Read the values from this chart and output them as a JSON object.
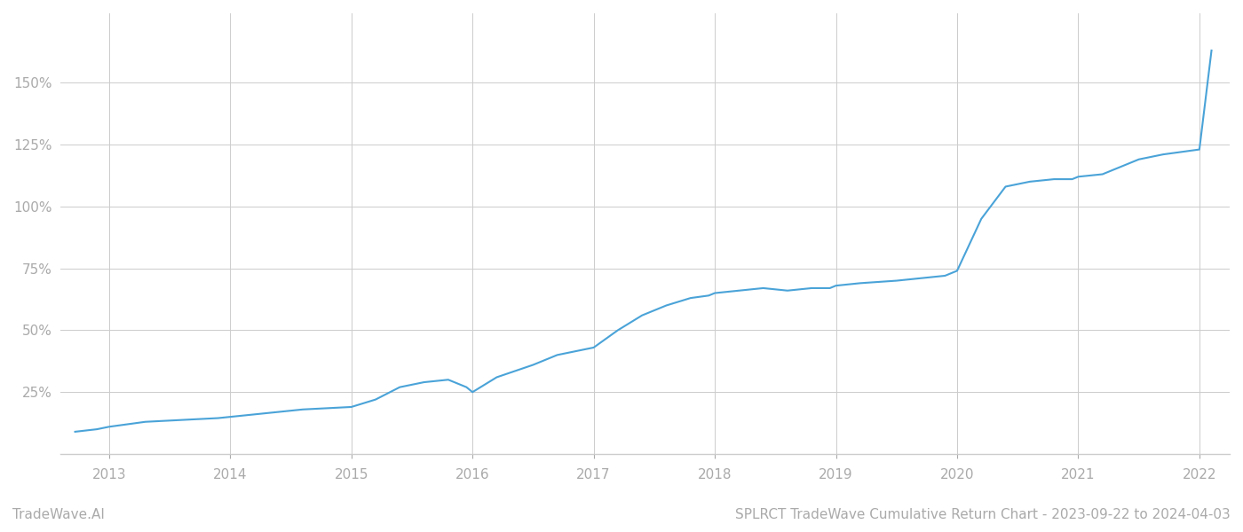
{
  "title": "SPLRCT TradeWave Cumulative Return Chart - 2023-09-22 to 2024-04-03",
  "watermark": "TradeWave.AI",
  "line_color": "#4aa3d8",
  "background_color": "#ffffff",
  "grid_color": "#cccccc",
  "x_years": [
    2013,
    2014,
    2015,
    2016,
    2017,
    2018,
    2019,
    2020,
    2021,
    2022
  ],
  "x_data": [
    2012.72,
    2012.9,
    2013.0,
    2013.15,
    2013.3,
    2013.5,
    2013.7,
    2013.9,
    2014.0,
    2014.2,
    2014.4,
    2014.6,
    2014.8,
    2015.0,
    2015.2,
    2015.4,
    2015.6,
    2015.8,
    2015.95,
    2016.0,
    2016.2,
    2016.5,
    2016.7,
    2016.9,
    2017.0,
    2017.2,
    2017.4,
    2017.6,
    2017.8,
    2017.95,
    2018.0,
    2018.2,
    2018.4,
    2018.6,
    2018.8,
    2018.95,
    2019.0,
    2019.2,
    2019.5,
    2019.7,
    2019.9,
    2020.0,
    2020.2,
    2020.4,
    2020.6,
    2020.8,
    2020.95,
    2021.0,
    2021.2,
    2021.5,
    2021.7,
    2021.85,
    2022.0,
    2022.1
  ],
  "y_data": [
    9,
    10,
    11,
    12,
    13,
    13.5,
    14,
    14.5,
    15,
    16,
    17,
    18,
    18.5,
    19,
    22,
    27,
    29,
    30,
    27,
    25,
    31,
    36,
    40,
    42,
    43,
    50,
    56,
    60,
    63,
    64,
    65,
    66,
    67,
    66,
    67,
    67,
    68,
    69,
    70,
    71,
    72,
    74,
    95,
    108,
    110,
    111,
    111,
    112,
    113,
    119,
    121,
    122,
    123,
    163
  ],
  "yticks": [
    25,
    50,
    75,
    100,
    125,
    150
  ],
  "ylim": [
    0,
    178
  ],
  "xlim": [
    2012.6,
    2022.25
  ],
  "line_width": 1.5,
  "title_fontsize": 11,
  "watermark_fontsize": 11,
  "tick_fontsize": 11,
  "tick_color": "#aaaaaa",
  "spine_color": "#cccccc"
}
